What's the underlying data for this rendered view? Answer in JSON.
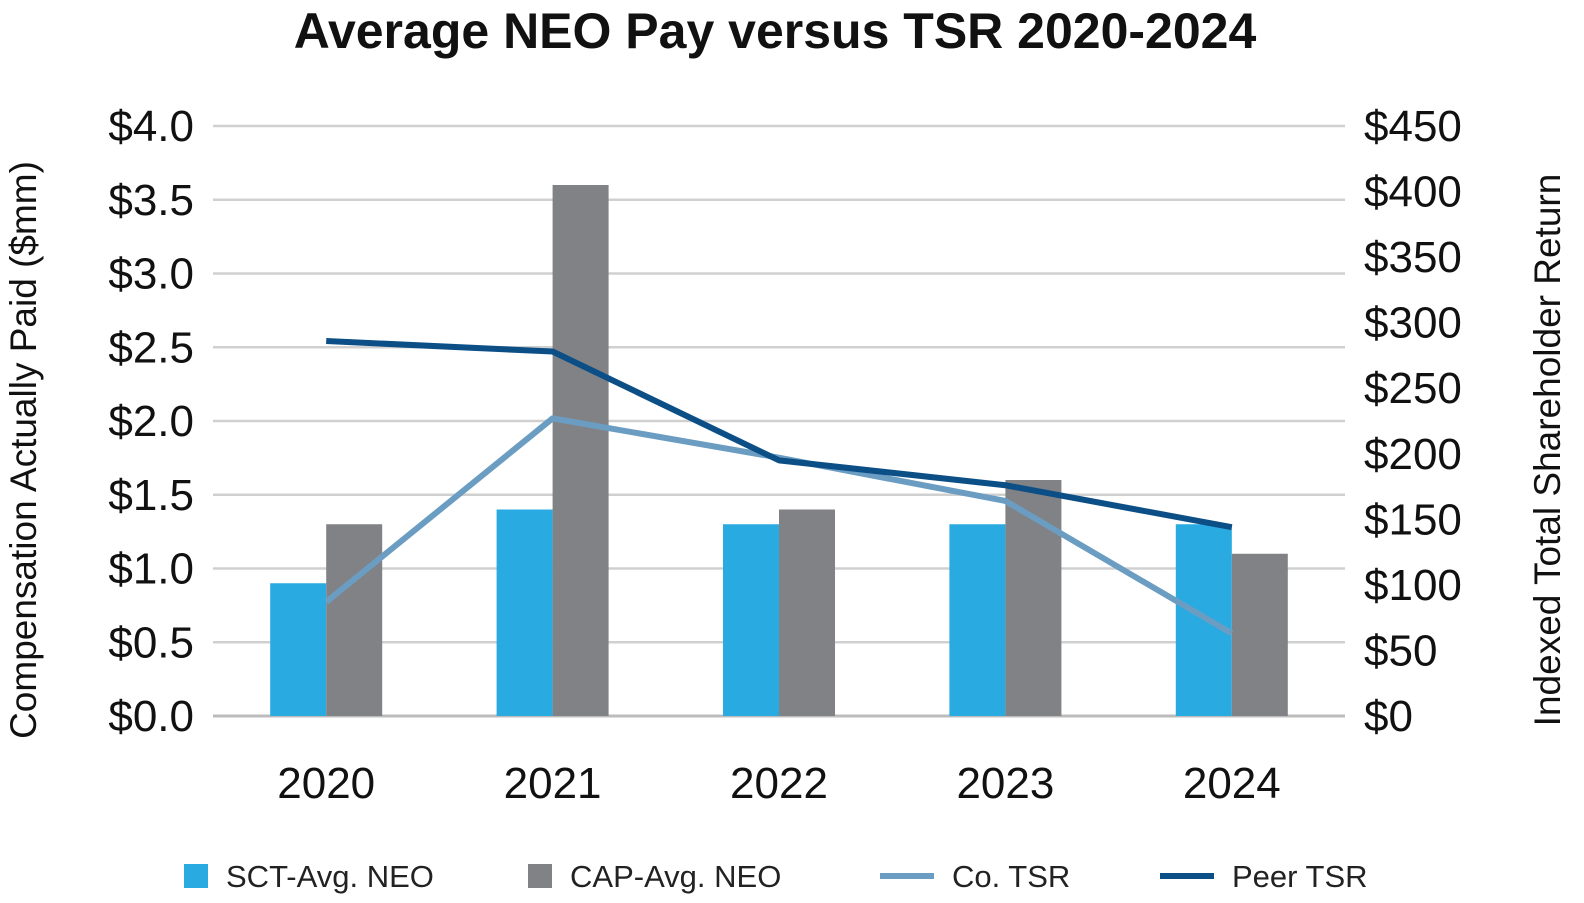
{
  "chart_data": {
    "type": "bar",
    "title": "Average NEO Pay versus TSR 2020-2024",
    "categories": [
      "2020",
      "2021",
      "2022",
      "2023",
      "2024"
    ],
    "ylabel": "Compensation Actually Paid ($mm)",
    "y2label": "Indexed Total Shareholder Return",
    "ylim": [
      0,
      4.0
    ],
    "y2lim": [
      0,
      450
    ],
    "yticks": [
      "$0.0",
      "$0.5",
      "$1.0",
      "$1.5",
      "$2.0",
      "$2.5",
      "$3.0",
      "$3.5",
      "$4.0"
    ],
    "y2ticks": [
      "$0",
      "$50",
      "$100",
      "$150",
      "$200",
      "$250",
      "$300",
      "$350",
      "$400",
      "$450"
    ],
    "grid": true,
    "legend_position": "bottom",
    "bar_series": [
      {
        "name": "SCT-Avg. NEO",
        "values": [
          0.9,
          1.4,
          1.3,
          1.3,
          1.3
        ],
        "color": "#29aae1",
        "axis": "left"
      },
      {
        "name": "CAP-Avg. NEO",
        "values": [
          1.3,
          3.6,
          1.4,
          1.6,
          1.1
        ],
        "color": "#818285",
        "axis": "left"
      }
    ],
    "line_series": [
      {
        "name": "Co. TSR",
        "values": [
          87,
          227,
          197,
          164,
          63
        ],
        "color": "#6b9dc2",
        "axis": "right"
      },
      {
        "name": "Peer TSR",
        "values": [
          286,
          278,
          195,
          176,
          144
        ],
        "color": "#0b4f86",
        "axis": "right"
      }
    ]
  }
}
